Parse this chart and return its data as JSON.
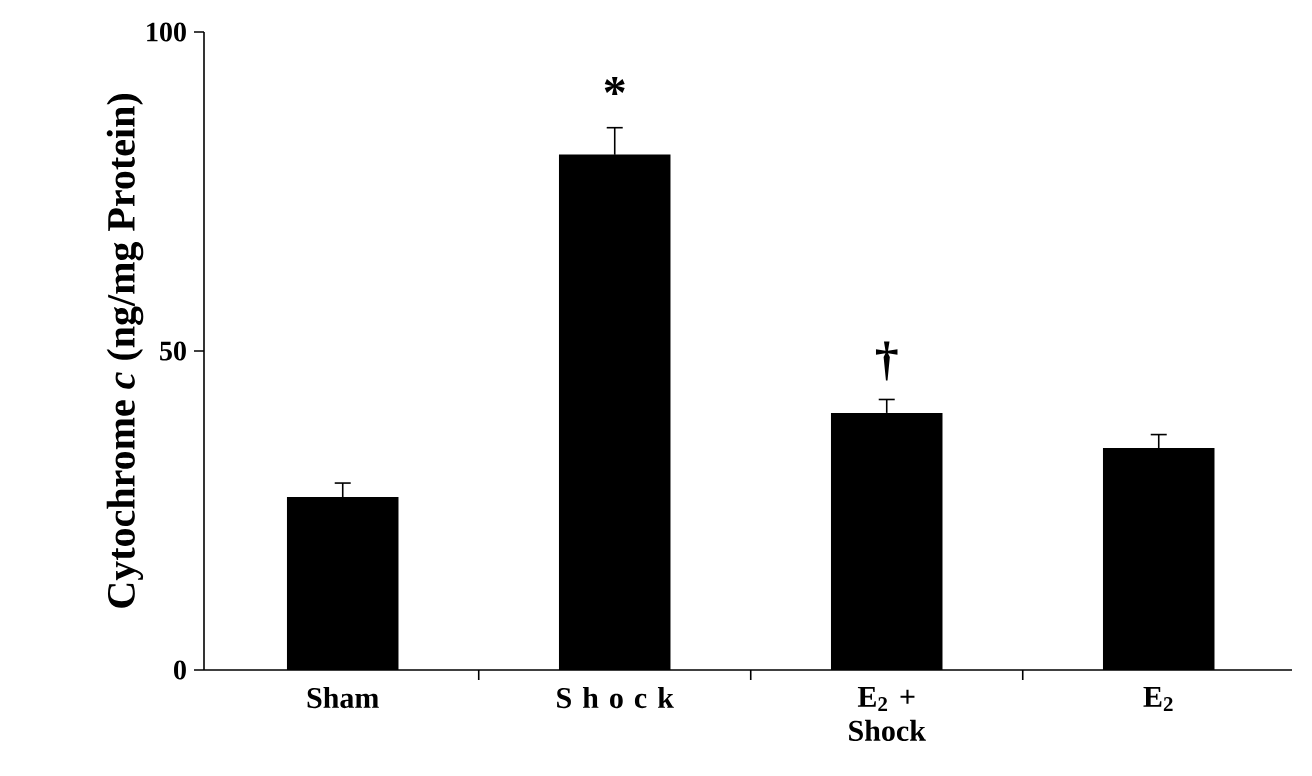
{
  "chart_data": {
    "type": "bar",
    "ylabel": "Cytochrome *c* (ng/mg Protein)",
    "categories": [
      "Sham",
      "S h o c k",
      "E$_{2}$ + Shock",
      "E$_{2}$"
    ],
    "values": [
      27.1,
      80.8,
      40.3,
      34.8
    ],
    "errors": [
      2.2,
      4.2,
      2.1,
      2.1
    ],
    "color": "#000000",
    "ylim": [
      0,
      100
    ],
    "yticks": [
      0,
      50,
      100
    ],
    "annotations": [
      "*",
      "†"
    ]
  }
}
